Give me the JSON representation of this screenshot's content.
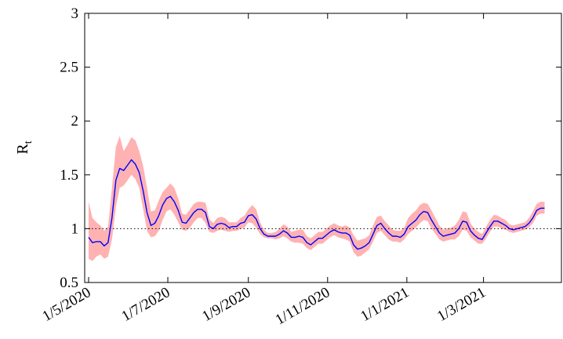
{
  "chart_data": {
    "type": "line",
    "title": "",
    "xlabel": "",
    "ylabel": "R",
    "ylabel_subscript": "t",
    "x_ticks": [
      "1/5/2020",
      "1/7/2020",
      "1/9/2020",
      "1/11/2020",
      "1/1/2021",
      "1/3/2021"
    ],
    "xlim": [
      "2020-04-28",
      "2021-04-30"
    ],
    "ylim": [
      0.5,
      3
    ],
    "y_ticks": [
      0.5,
      1,
      1.5,
      2,
      2.5,
      3
    ],
    "y_tick_labels": [
      "0.5",
      "1",
      "1.5",
      "2",
      "2.5",
      "3"
    ],
    "reference_line": {
      "y": 1,
      "style": "dotted",
      "color": "#000000"
    },
    "grid": false,
    "series": [
      {
        "line_color": "#0000ff",
        "band_color": "#ffb2b2",
        "x": [
          "2020-05-01",
          "2020-05-04",
          "2020-05-07",
          "2020-05-10",
          "2020-05-13",
          "2020-05-16",
          "2020-05-19",
          "2020-05-22",
          "2020-05-25",
          "2020-05-28",
          "2020-05-31",
          "2020-06-03",
          "2020-06-06",
          "2020-06-09",
          "2020-06-12",
          "2020-06-15",
          "2020-06-18",
          "2020-06-21",
          "2020-06-24",
          "2020-06-27",
          "2020-06-30",
          "2020-07-03",
          "2020-07-06",
          "2020-07-09",
          "2020-07-12",
          "2020-07-15",
          "2020-07-18",
          "2020-07-21",
          "2020-07-24",
          "2020-07-27",
          "2020-07-30",
          "2020-08-02",
          "2020-08-05",
          "2020-08-08",
          "2020-08-11",
          "2020-08-14",
          "2020-08-17",
          "2020-08-20",
          "2020-08-23",
          "2020-08-26",
          "2020-08-29",
          "2020-09-01",
          "2020-09-04",
          "2020-09-07",
          "2020-09-10",
          "2020-09-13",
          "2020-09-16",
          "2020-09-19",
          "2020-09-22",
          "2020-09-25",
          "2020-09-28",
          "2020-10-01",
          "2020-10-04",
          "2020-10-07",
          "2020-10-10",
          "2020-10-13",
          "2020-10-16",
          "2020-10-19",
          "2020-10-22",
          "2020-10-25",
          "2020-10-28",
          "2020-10-31",
          "2020-11-03",
          "2020-11-06",
          "2020-11-09",
          "2020-11-12",
          "2020-11-15",
          "2020-11-18",
          "2020-11-21",
          "2020-11-24",
          "2020-11-27",
          "2020-11-30",
          "2020-12-03",
          "2020-12-06",
          "2020-12-09",
          "2020-12-12",
          "2020-12-15",
          "2020-12-18",
          "2020-12-21",
          "2020-12-24",
          "2020-12-27",
          "2020-12-30",
          "2021-01-02",
          "2021-01-05",
          "2021-01-08",
          "2021-01-11",
          "2021-01-14",
          "2021-01-17",
          "2021-01-20",
          "2021-01-23",
          "2021-01-26",
          "2021-01-29",
          "2021-02-01",
          "2021-02-04",
          "2021-02-07",
          "2021-02-10",
          "2021-02-13",
          "2021-02-16",
          "2021-02-19",
          "2021-02-22",
          "2021-02-25",
          "2021-02-28",
          "2021-03-03",
          "2021-03-06",
          "2021-03-09",
          "2021-03-12",
          "2021-03-15",
          "2021-03-18",
          "2021-03-21",
          "2021-03-24",
          "2021-03-27",
          "2021-03-30",
          "2021-04-02",
          "2021-04-05",
          "2021-04-08",
          "2021-04-11",
          "2021-04-14",
          "2021-04-17"
        ],
        "values": [
          0.92,
          0.87,
          0.88,
          0.88,
          0.84,
          0.87,
          1.1,
          1.45,
          1.56,
          1.54,
          1.59,
          1.64,
          1.6,
          1.52,
          1.35,
          1.15,
          1.03,
          1.05,
          1.12,
          1.22,
          1.28,
          1.3,
          1.25,
          1.17,
          1.06,
          1.05,
          1.1,
          1.15,
          1.18,
          1.18,
          1.15,
          1.02,
          1.0,
          1.04,
          1.05,
          1.04,
          1.01,
          1.02,
          1.02,
          1.05,
          1.06,
          1.12,
          1.13,
          1.09,
          1.0,
          0.95,
          0.93,
          0.93,
          0.93,
          0.95,
          0.98,
          0.96,
          0.92,
          0.92,
          0.93,
          0.92,
          0.87,
          0.85,
          0.88,
          0.91,
          0.91,
          0.94,
          0.97,
          0.99,
          0.97,
          0.96,
          0.96,
          0.94,
          0.85,
          0.81,
          0.82,
          0.84,
          0.87,
          0.95,
          1.03,
          1.05,
          1.0,
          0.96,
          0.93,
          0.93,
          0.92,
          0.95,
          1.02,
          1.05,
          1.08,
          1.13,
          1.16,
          1.15,
          1.08,
          1.02,
          0.96,
          0.93,
          0.94,
          0.95,
          0.96,
          1.0,
          1.07,
          1.06,
          0.98,
          0.94,
          0.91,
          0.9,
          0.96,
          1.02,
          1.07,
          1.07,
          1.05,
          1.03,
          1.0,
          0.99,
          1.0,
          1.01,
          1.02,
          1.05,
          1.1,
          1.17,
          1.19,
          1.19
        ],
        "lower": [
          0.72,
          0.7,
          0.74,
          0.76,
          0.72,
          0.74,
          0.9,
          1.2,
          1.38,
          1.4,
          1.45,
          1.5,
          1.46,
          1.38,
          1.18,
          0.98,
          0.92,
          0.93,
          0.98,
          1.08,
          1.16,
          1.18,
          1.13,
          1.06,
          0.99,
          0.98,
          1.01,
          1.06,
          1.1,
          1.1,
          1.05,
          0.97,
          0.96,
          0.98,
          0.99,
          0.98,
          0.97,
          0.98,
          0.98,
          1.0,
          1.01,
          1.06,
          1.05,
          1.01,
          0.95,
          0.92,
          0.91,
          0.91,
          0.9,
          0.91,
          0.93,
          0.91,
          0.88,
          0.87,
          0.87,
          0.86,
          0.82,
          0.8,
          0.83,
          0.86,
          0.86,
          0.89,
          0.92,
          0.94,
          0.92,
          0.91,
          0.9,
          0.88,
          0.78,
          0.74,
          0.75,
          0.78,
          0.81,
          0.88,
          0.96,
          0.98,
          0.94,
          0.9,
          0.88,
          0.88,
          0.87,
          0.9,
          0.95,
          0.98,
          1.01,
          1.05,
          1.08,
          1.07,
          1.0,
          0.95,
          0.9,
          0.88,
          0.89,
          0.9,
          0.9,
          0.93,
          0.99,
          0.98,
          0.92,
          0.89,
          0.86,
          0.86,
          0.91,
          0.97,
          1.02,
          1.02,
          1.0,
          0.99,
          0.97,
          0.96,
          0.97,
          0.98,
          0.99,
          1.01,
          1.05,
          1.12,
          1.14,
          1.14
        ],
        "upper": [
          1.25,
          1.1,
          1.06,
          1.03,
          0.98,
          1.02,
          1.38,
          1.76,
          1.86,
          1.72,
          1.78,
          1.85,
          1.82,
          1.72,
          1.58,
          1.38,
          1.16,
          1.17,
          1.26,
          1.34,
          1.38,
          1.42,
          1.38,
          1.28,
          1.14,
          1.13,
          1.18,
          1.23,
          1.25,
          1.25,
          1.24,
          1.09,
          1.05,
          1.1,
          1.11,
          1.1,
          1.06,
          1.06,
          1.06,
          1.1,
          1.12,
          1.18,
          1.22,
          1.18,
          1.06,
          0.99,
          0.96,
          0.96,
          0.97,
          1.0,
          1.04,
          1.02,
          0.97,
          0.98,
          0.99,
          0.99,
          0.93,
          0.91,
          0.94,
          0.97,
          0.97,
          1.0,
          1.03,
          1.05,
          1.03,
          1.02,
          1.03,
          1.01,
          0.94,
          0.89,
          0.9,
          0.91,
          0.94,
          1.03,
          1.11,
          1.12,
          1.07,
          1.03,
          0.99,
          0.98,
          0.98,
          1.01,
          1.1,
          1.14,
          1.17,
          1.22,
          1.24,
          1.23,
          1.17,
          1.1,
          1.03,
          0.99,
          1.0,
          1.01,
          1.03,
          1.08,
          1.16,
          1.15,
          1.05,
          1.0,
          0.97,
          0.95,
          1.02,
          1.08,
          1.13,
          1.12,
          1.1,
          1.08,
          1.04,
          1.03,
          1.04,
          1.05,
          1.06,
          1.1,
          1.16,
          1.23,
          1.25,
          1.25
        ]
      }
    ]
  }
}
